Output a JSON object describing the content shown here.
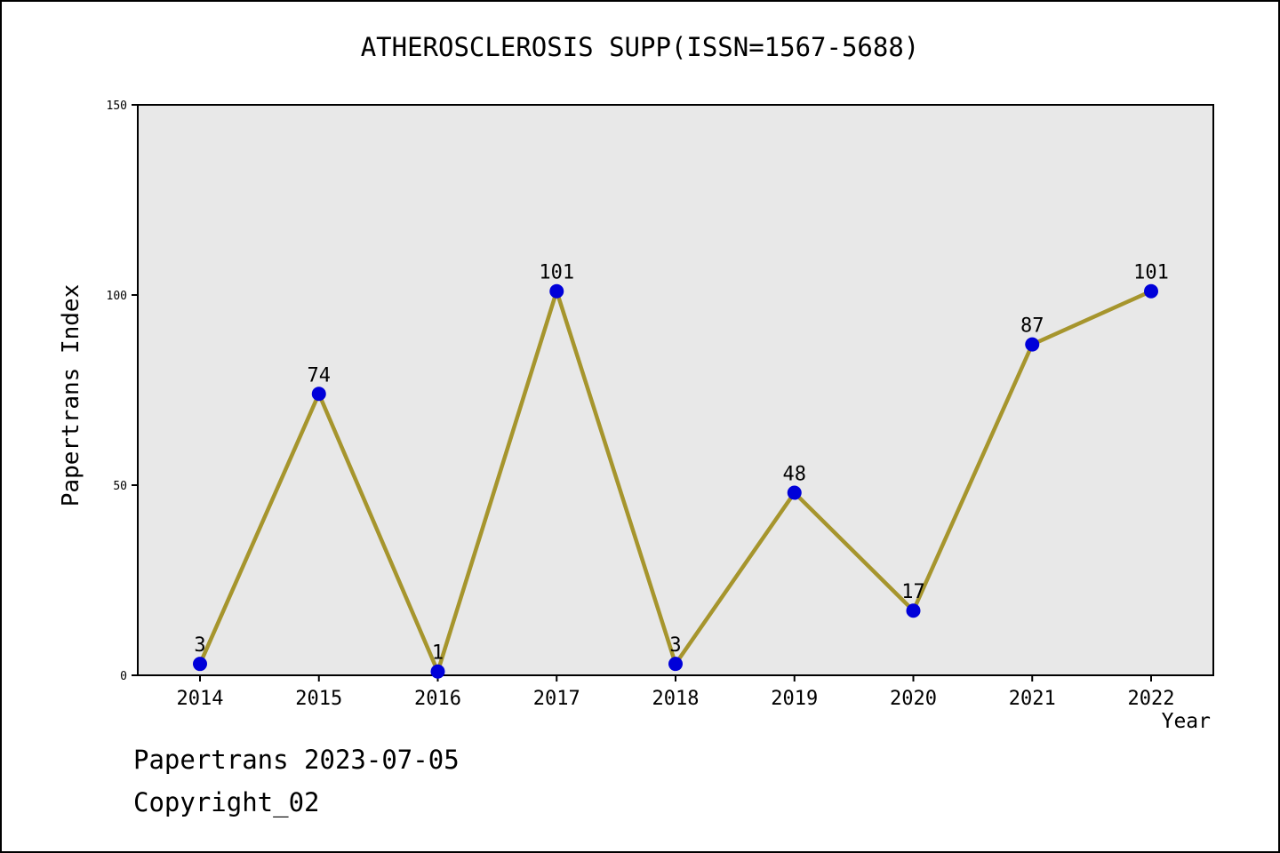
{
  "chart_data": {
    "type": "line",
    "title": "ATHEROSCLEROSIS SUPP(ISSN=1567-5688)",
    "categories": [
      "2014",
      "2015",
      "2016",
      "2017",
      "2018",
      "2019",
      "2020",
      "2021",
      "2022"
    ],
    "values": [
      3,
      74,
      1,
      101,
      3,
      48,
      17,
      87,
      101
    ],
    "xlabel": "Year",
    "ylabel": "Papertrans Index",
    "ylim": [
      0,
      150
    ],
    "yticks": [
      0,
      50,
      100,
      150
    ],
    "grid": false,
    "legend": "none",
    "colors": {
      "line": "#a6952d",
      "marker": "#0000d9",
      "plot_background": "#e8e8e8",
      "page_background": "#ffffff",
      "axis": "#000000"
    }
  },
  "footer": {
    "line1": "Papertrans 2023-07-05",
    "line2": "Copyright_02"
  }
}
